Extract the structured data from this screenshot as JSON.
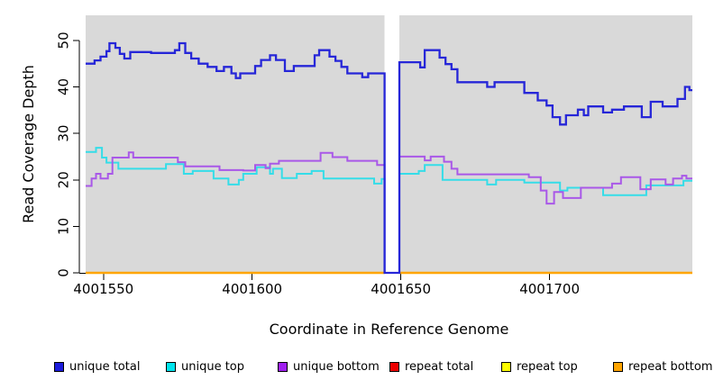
{
  "chart_data": {
    "type": "line",
    "subtype": "step-coverage",
    "xlabel": "Coordinate in Reference Genome",
    "ylabel": "Read Coverage Depth",
    "xlim": [
      4001544,
      4001748
    ],
    "ylim": [
      0,
      55.4
    ],
    "x_ticks": [
      4001550,
      4001600,
      4001650,
      4001700
    ],
    "y_ticks": [
      0,
      10,
      20,
      30,
      40,
      50
    ],
    "grid": false,
    "plot_bg": "#d9d9d9",
    "gap_region": [
      4001644.5,
      4001649.5
    ],
    "axis_color": "#000000",
    "legend_position": "bottom",
    "legend": [
      {
        "label": "unique total",
        "color": "#1c1cdc"
      },
      {
        "label": "unique top",
        "color": "#00e5ee"
      },
      {
        "label": "unique bottom",
        "color": "#a020f0"
      },
      {
        "label": "repeat total",
        "color": "#ee0000"
      },
      {
        "label": "repeat top",
        "color": "#ffff00"
      },
      {
        "label": "repeat bottom",
        "color": "#ffa500"
      }
    ],
    "series": [
      {
        "name": "repeat total",
        "color": "#ee0000",
        "width": 2,
        "segments": [
          [
            [
              4001544,
              0
            ],
            [
              4001644.5,
              0
            ]
          ],
          [
            [
              4001649.5,
              0
            ],
            [
              4001748,
              0
            ]
          ]
        ]
      },
      {
        "name": "repeat top",
        "color": "#ffff00",
        "width": 2,
        "segments": [
          [
            [
              4001544,
              0
            ],
            [
              4001644.5,
              0
            ]
          ],
          [
            [
              4001649.5,
              0
            ],
            [
              4001748,
              0
            ]
          ]
        ]
      },
      {
        "name": "repeat bottom",
        "color": "#ffa500",
        "width": 2.4,
        "segments": [
          [
            [
              4001544,
              0
            ],
            [
              4001644.5,
              0
            ]
          ],
          [
            [
              4001649.5,
              0
            ],
            [
              4001748,
              0
            ]
          ]
        ]
      },
      {
        "name": "unique top",
        "color": "#35dde8",
        "width": 2,
        "segments": [
          [
            [
              4001544,
              26
            ],
            [
              4001547.5,
              26.9
            ],
            [
              4001549.5,
              24.8
            ],
            [
              4001551,
              23.7
            ],
            [
              4001555,
              22.4
            ],
            [
              4001571,
              23.4
            ],
            [
              4001577,
              21.3
            ],
            [
              4001580,
              21.9
            ],
            [
              4001587,
              20.3
            ],
            [
              4001592,
              19
            ],
            [
              4001595.5,
              20
            ],
            [
              4001597,
              21.3
            ],
            [
              4001601.5,
              22.7
            ],
            [
              4001606,
              21.3
            ],
            [
              4001607,
              22.4
            ],
            [
              4001610,
              20.4
            ],
            [
              4001615,
              21.3
            ],
            [
              4001620,
              21.9
            ],
            [
              4001624,
              20.3
            ],
            [
              4001641,
              19.2
            ],
            [
              4001643.5,
              20.2
            ],
            [
              4001644.5,
              0
            ],
            [
              4001649.5,
              21.3
            ],
            [
              4001656,
              21.9
            ],
            [
              4001658,
              23.2
            ],
            [
              4001664,
              20
            ],
            [
              4001679,
              19
            ],
            [
              4001682,
              20
            ],
            [
              4001691.5,
              19.4
            ],
            [
              4001703.5,
              17.7
            ],
            [
              4001706,
              18.3
            ],
            [
              4001718,
              16.7
            ],
            [
              4001732.5,
              18.8
            ],
            [
              4001745,
              19.8
            ],
            [
              4001748,
              19.8
            ]
          ]
        ]
      },
      {
        "name": "unique bottom",
        "color": "#a958e8",
        "width": 2,
        "segments": [
          [
            [
              4001544,
              18.7
            ],
            [
              4001546,
              20.3
            ],
            [
              4001547.5,
              21.3
            ],
            [
              4001549,
              20.3
            ],
            [
              4001551.5,
              21.3
            ],
            [
              4001553,
              24.8
            ],
            [
              4001558.5,
              25.9
            ],
            [
              4001560,
              24.8
            ],
            [
              4001575,
              23.8
            ],
            [
              4001577.5,
              22.9
            ],
            [
              4001589,
              22.1
            ],
            [
              4001597,
              22
            ],
            [
              4001601,
              23.2
            ],
            [
              4001604.5,
              22.5
            ],
            [
              4001606,
              23.5
            ],
            [
              4001609,
              24.1
            ],
            [
              4001623,
              25.8
            ],
            [
              4001627,
              24.9
            ],
            [
              4001632,
              24.1
            ],
            [
              4001642,
              23.2
            ],
            [
              4001644.5,
              0
            ],
            [
              4001649.5,
              25
            ],
            [
              4001658,
              24.2
            ],
            [
              4001660,
              25
            ],
            [
              4001664.5,
              23.9
            ],
            [
              4001667,
              22.4
            ],
            [
              4001669,
              21.2
            ],
            [
              4001693,
              20.6
            ],
            [
              4001697,
              17.7
            ],
            [
              4001699,
              14.9
            ],
            [
              4001701.5,
              17.4
            ],
            [
              4001704.5,
              16.1
            ],
            [
              4001710.5,
              18.3
            ],
            [
              4001721,
              19.2
            ],
            [
              4001724,
              20.6
            ],
            [
              4001730.5,
              18
            ],
            [
              4001734,
              20.1
            ],
            [
              4001739,
              19
            ],
            [
              4001741.5,
              20.3
            ],
            [
              4001744.5,
              20.9
            ],
            [
              4001746,
              20.3
            ],
            [
              4001748,
              20.3
            ]
          ]
        ]
      },
      {
        "name": "unique total",
        "color": "#2626d8",
        "width": 2.3,
        "segments": [
          [
            [
              4001544,
              45
            ],
            [
              4001547,
              45.7
            ],
            [
              4001549,
              46.5
            ],
            [
              4001551,
              47.7
            ],
            [
              4001552,
              49.4
            ],
            [
              4001554,
              48.4
            ],
            [
              4001555.5,
              47.1
            ],
            [
              4001557,
              46.1
            ],
            [
              4001559,
              47.5
            ],
            [
              4001566,
              47.3
            ],
            [
              4001574,
              47.9
            ],
            [
              4001575.5,
              49.4
            ],
            [
              4001577.5,
              47.3
            ],
            [
              4001579.5,
              46.1
            ],
            [
              4001582,
              45
            ],
            [
              4001585,
              44.3
            ],
            [
              4001588,
              43.4
            ],
            [
              4001590.5,
              44.3
            ],
            [
              4001593,
              42.9
            ],
            [
              4001594.5,
              41.9
            ],
            [
              4001596,
              42.9
            ],
            [
              4001601,
              44.5
            ],
            [
              4001603,
              45.8
            ],
            [
              4001606,
              46.8
            ],
            [
              4001608,
              45.8
            ],
            [
              4001611,
              43.4
            ],
            [
              4001614,
              44.5
            ],
            [
              4001621,
              46.8
            ],
            [
              4001622.5,
              47.9
            ],
            [
              4001626,
              46.5
            ],
            [
              4001628,
              45.6
            ],
            [
              4001630,
              44.3
            ],
            [
              4001632,
              42.9
            ],
            [
              4001637,
              42.1
            ],
            [
              4001639,
              42.9
            ],
            [
              4001644.5,
              0
            ],
            [
              4001649.5,
              45.3
            ],
            [
              4001656.5,
              44.2
            ],
            [
              4001658,
              47.9
            ],
            [
              4001663,
              46.3
            ],
            [
              4001665,
              44.9
            ],
            [
              4001667,
              43.8
            ],
            [
              4001669,
              41
            ],
            [
              4001679,
              40
            ],
            [
              4001681.5,
              41
            ],
            [
              4001691.5,
              38.7
            ],
            [
              4001696,
              37.1
            ],
            [
              4001699,
              36
            ],
            [
              4001701,
              33.5
            ],
            [
              4001703.5,
              31.9
            ],
            [
              4001705.5,
              33.9
            ],
            [
              4001709.5,
              35.1
            ],
            [
              4001711.5,
              33.9
            ],
            [
              4001713,
              35.8
            ],
            [
              4001718,
              34.5
            ],
            [
              4001721,
              35.1
            ],
            [
              4001725,
              35.8
            ],
            [
              4001731,
              33.5
            ],
            [
              4001734,
              36.8
            ],
            [
              4001738,
              35.8
            ],
            [
              4001743,
              37.4
            ],
            [
              4001745.5,
              40
            ],
            [
              4001747,
              39.3
            ],
            [
              4001748,
              39.3
            ]
          ]
        ]
      }
    ]
  }
}
